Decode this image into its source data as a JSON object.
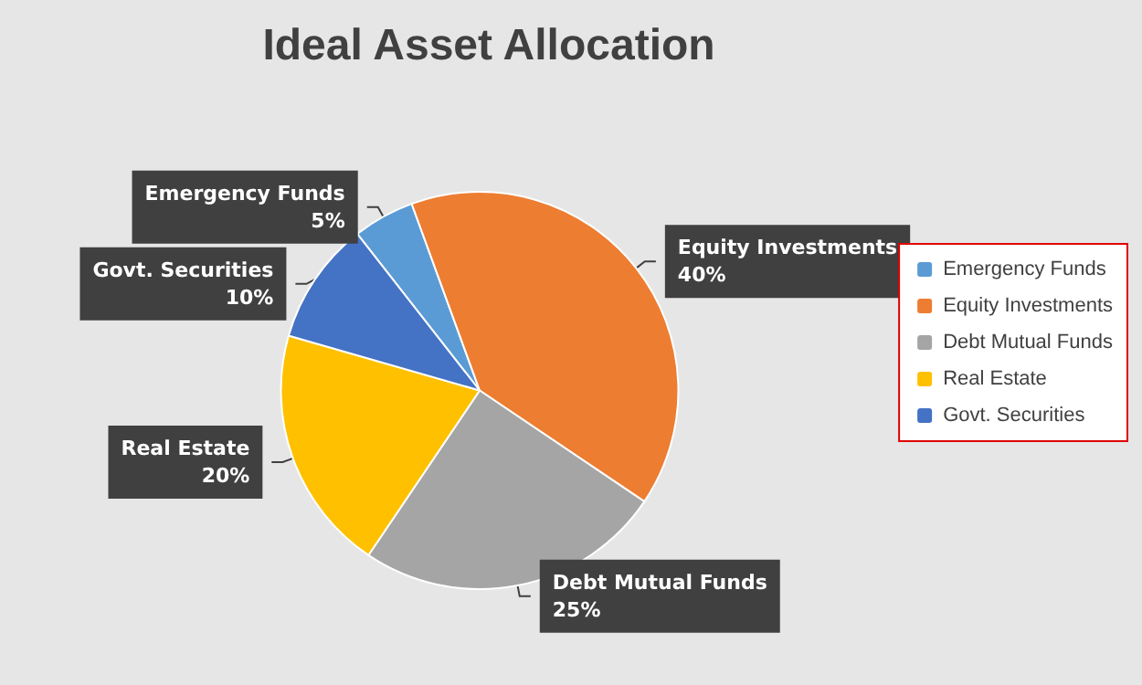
{
  "chart_data": {
    "type": "pie",
    "title": "Ideal Asset Allocation",
    "categories": [
      "Emergency Funds",
      "Equity Investments",
      "Debt Mutual Funds",
      "Real Estate",
      "Govt. Securities"
    ],
    "values": [
      5,
      40,
      25,
      20,
      10
    ],
    "colors": [
      "#5b9bd5",
      "#ed7d31",
      "#a5a5a5",
      "#ffc000",
      "#4472c4"
    ],
    "value_labels": [
      "5%",
      "40%",
      "25%",
      "20%",
      "10%"
    ],
    "legend": "right"
  }
}
